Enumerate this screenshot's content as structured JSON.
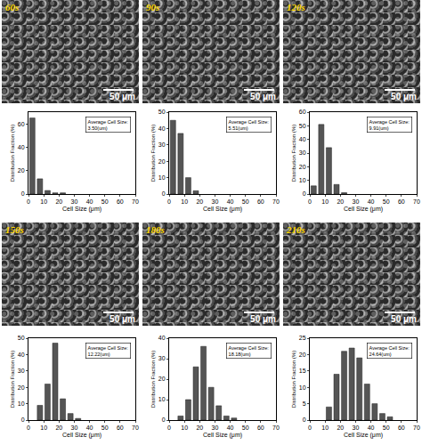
{
  "micrographs": [
    {
      "label": "60s",
      "scale_bar": "50 μm"
    },
    {
      "label": "90s",
      "scale_bar": "50 μm"
    },
    {
      "label": "120s",
      "scale_bar": "50 μm"
    },
    {
      "label": "150s",
      "scale_bar": "50 μm"
    },
    {
      "label": "180s",
      "scale_bar": "50 μm"
    },
    {
      "label": "210s",
      "scale_bar": "50 μm"
    }
  ],
  "chart_data": [
    {
      "type": "histogram",
      "xlabel": "Cell Size (μm)",
      "ylabel": "Distribution Fraction (%)",
      "annotation": [
        "Average Cell Size:",
        "3.50(um)"
      ],
      "bins": [
        0,
        5,
        10,
        15,
        20,
        25
      ],
      "values": [
        65,
        13,
        3,
        1,
        1
      ],
      "color": "#555555",
      "xlim": [
        0,
        70
      ],
      "xticks": [
        0,
        10,
        20,
        30,
        40,
        50,
        60,
        70
      ],
      "ylim": [
        0,
        70
      ],
      "yticks": [
        0,
        20,
        40,
        60
      ],
      "grid": false
    },
    {
      "type": "histogram",
      "xlabel": "Cell Size (μm)",
      "ylabel": "Distribution Fraction (%)",
      "annotation": [
        "Average Cell Size:",
        "5.51(um)"
      ],
      "bins": [
        0,
        5,
        10,
        15,
        20
      ],
      "values": [
        45,
        37,
        10,
        2
      ],
      "color": "#555555",
      "xlim": [
        0,
        70
      ],
      "xticks": [
        0,
        10,
        20,
        30,
        40,
        50,
        60,
        70
      ],
      "ylim": [
        0,
        50
      ],
      "yticks": [
        0,
        10,
        20,
        30,
        40,
        50
      ],
      "grid": false
    },
    {
      "type": "histogram",
      "xlabel": "Cell Size (μm)",
      "ylabel": "Distribution Fraction (%)",
      "annotation": [
        "Average Cell Size:",
        "9.91(um)"
      ],
      "bins": [
        0,
        5,
        10,
        15,
        20,
        25
      ],
      "values": [
        6,
        51,
        34,
        7,
        1
      ],
      "color": "#555555",
      "xlim": [
        0,
        70
      ],
      "xticks": [
        0,
        10,
        20,
        30,
        40,
        50,
        60,
        70
      ],
      "ylim": [
        0,
        60
      ],
      "yticks": [
        0,
        10,
        20,
        30,
        40,
        50,
        60
      ],
      "grid": false
    },
    {
      "type": "histogram",
      "xlabel": "Cell Size (μm)",
      "ylabel": "Distribution Fraction (%)",
      "annotation": [
        "Average Cell Size:",
        "12.22(um)"
      ],
      "bins": [
        5,
        10,
        15,
        20,
        25,
        30,
        35
      ],
      "values": [
        9,
        22,
        47,
        13,
        4,
        1
      ],
      "color": "#555555",
      "xlim": [
        0,
        70
      ],
      "xticks": [
        0,
        10,
        20,
        30,
        40,
        50,
        60,
        70
      ],
      "ylim": [
        0,
        50
      ],
      "yticks": [
        0,
        10,
        20,
        30,
        40,
        50
      ],
      "grid": false
    },
    {
      "type": "histogram",
      "xlabel": "Cell Size (μm)",
      "ylabel": "Distribution Fraction (%)",
      "annotation": [
        "Average Cell Size:",
        "18.18(um)"
      ],
      "bins": [
        5,
        10,
        15,
        20,
        25,
        30,
        35,
        40,
        45
      ],
      "values": [
        2,
        10,
        26,
        36,
        16,
        7,
        2,
        1
      ],
      "color": "#555555",
      "xlim": [
        0,
        70
      ],
      "xticks": [
        0,
        10,
        20,
        30,
        40,
        50,
        60,
        70
      ],
      "ylim": [
        0,
        40
      ],
      "yticks": [
        0,
        10,
        20,
        30,
        40
      ],
      "grid": false
    },
    {
      "type": "histogram",
      "xlabel": "Cell Size (μm)",
      "ylabel": "Distribution Fraction (%)",
      "annotation": [
        "Average Cell Size:",
        "24.64(um)"
      ],
      "bins": [
        10,
        15,
        20,
        25,
        30,
        35,
        40,
        45,
        50,
        55
      ],
      "values": [
        4,
        14,
        21,
        22,
        19,
        11,
        5,
        2,
        1
      ],
      "color": "#555555",
      "xlim": [
        0,
        70
      ],
      "xticks": [
        0,
        10,
        20,
        30,
        40,
        50,
        60,
        70
      ],
      "ylim": [
        0,
        25
      ],
      "yticks": [
        0,
        5,
        10,
        15,
        20,
        25
      ],
      "grid": false
    }
  ]
}
